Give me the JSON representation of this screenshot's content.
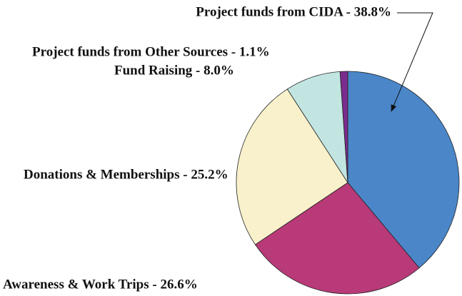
{
  "chart_data": {
    "type": "pie",
    "categories": [
      "Project funds from CIDA - 38.8%",
      "Awareness & Work Trips - 26.6%",
      "Donations & Memberships - 25.2%",
      "Fund Raising - 8.0%",
      "Project funds from Other Sources - 1.1%"
    ],
    "values": [
      38.8,
      26.6,
      25.2,
      8.0,
      1.1
    ],
    "colors": [
      "#4a86c8",
      "#b83a78",
      "#f9f1cb",
      "#c2e5e1",
      "#7b2c8e"
    ]
  }
}
